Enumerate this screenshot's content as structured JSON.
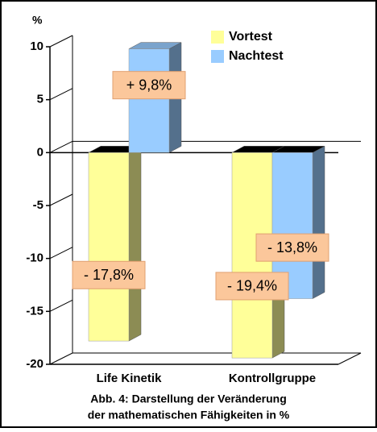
{
  "chart_data": {
    "type": "bar3d",
    "y_label": "%",
    "categories": [
      "Life Kinetik",
      "Kontrollgruppe"
    ],
    "series": [
      {
        "name": "Vortest",
        "color": "#ffff99",
        "values": [
          -17.8,
          -19.4
        ],
        "value_labels": [
          "- 17,8%",
          "- 19,4%"
        ]
      },
      {
        "name": "Nachtest",
        "color": "#99ccff",
        "values": [
          9.8,
          -13.8
        ],
        "value_labels": [
          "+ 9,8%",
          "- 13,8%"
        ]
      }
    ],
    "ylim": [
      -20,
      10
    ],
    "yticks": [
      -20,
      -15,
      -10,
      -5,
      0,
      5,
      10
    ],
    "legend": "top-right",
    "caption": [
      "Abb. 4: Darstellung der Veränderung",
      "der mathematischen Fähigkeiten in %"
    ]
  }
}
